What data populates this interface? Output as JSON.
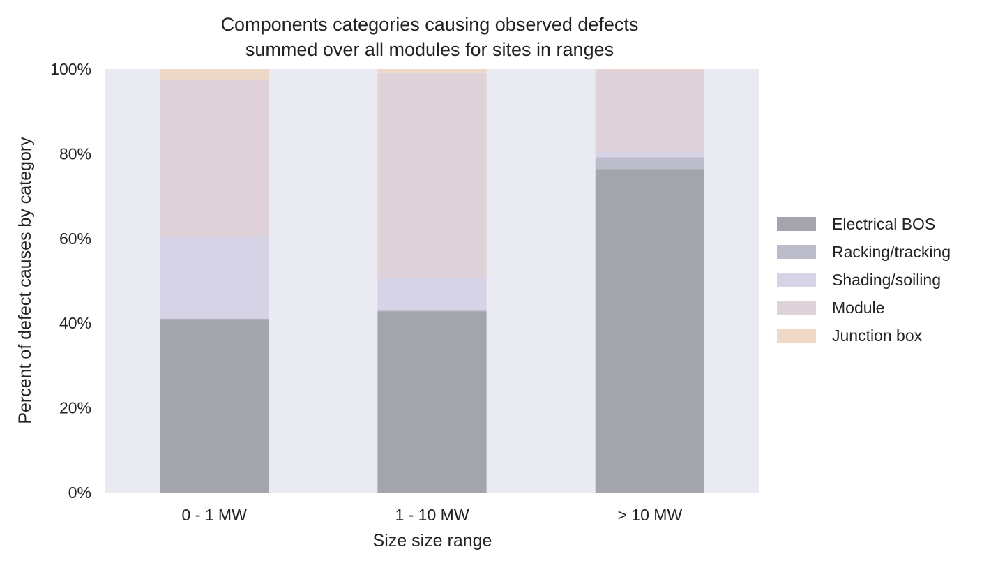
{
  "chart_data": {
    "type": "bar",
    "stacked": true,
    "title": "Components categories causing observed defects\nsummed over all modules for sites in ranges",
    "xlabel": "Size size range",
    "ylabel": "Percent of defect causes by category",
    "ylim": [
      0,
      100
    ],
    "yticks": [
      "0%",
      "20%",
      "40%",
      "60%",
      "80%",
      "100%"
    ],
    "ytick_values": [
      0,
      20,
      40,
      60,
      80,
      100
    ],
    "grid": false,
    "background": "#eaeaf2",
    "legend_position": "right",
    "categories": [
      "0 - 1 MW",
      "1 - 10 MW",
      "> 10 MW"
    ],
    "series": [
      {
        "name": "Electrical BOS",
        "color": "#a4a4ad",
        "values": [
          41.0,
          42.8,
          76.4
        ]
      },
      {
        "name": "Racking/tracking",
        "color": "#bcbcca",
        "values": [
          0.0,
          0.2,
          2.8
        ]
      },
      {
        "name": "Shading/soiling",
        "color": "#d6d3e6",
        "values": [
          19.6,
          7.7,
          1.2
        ]
      },
      {
        "name": "Module",
        "color": "#dfd2d8",
        "values": [
          37.0,
          48.5,
          19.3
        ]
      },
      {
        "name": "Junction box",
        "color": "#efd9c6",
        "values": [
          2.4,
          0.8,
          0.3
        ]
      }
    ]
  }
}
